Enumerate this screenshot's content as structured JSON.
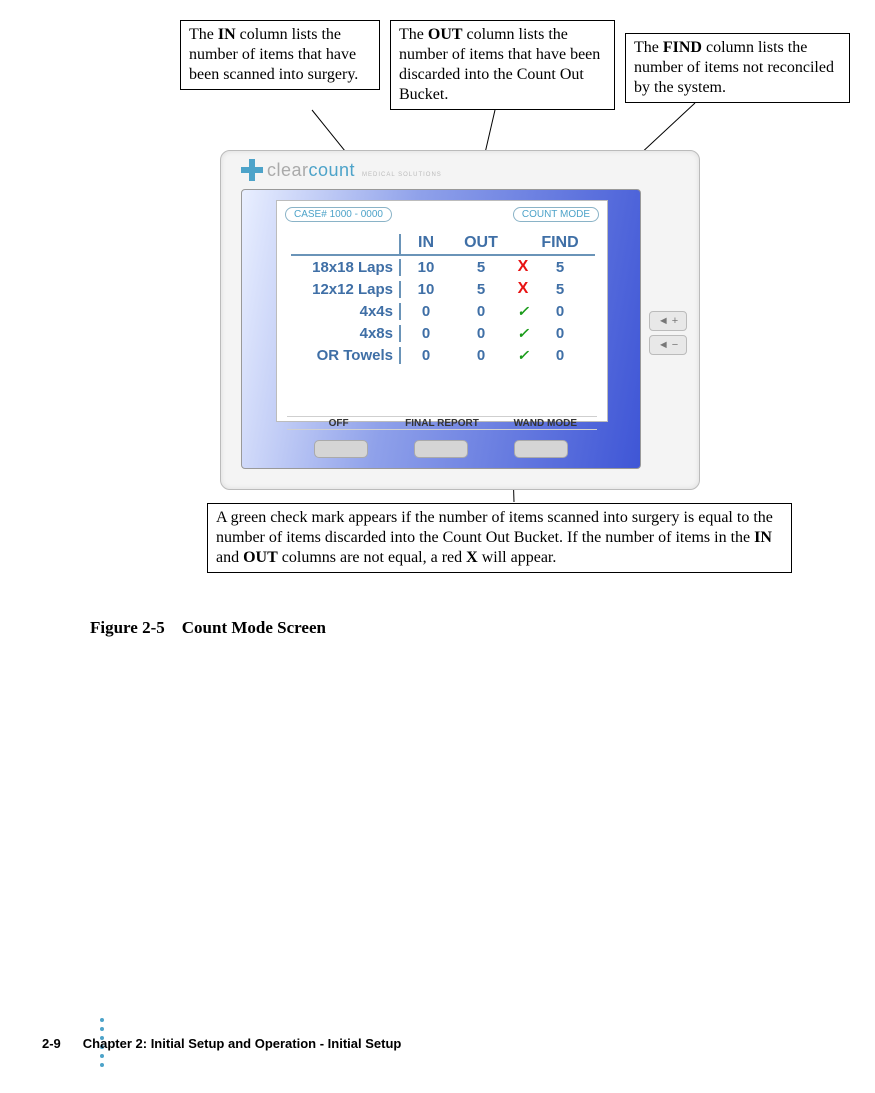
{
  "callouts": {
    "in": "The <b>IN</b> column lists the number of items that have been scanned into surgery.",
    "out": "The <b>OUT</b> column lists the number of items that have been discarded into the Count Out Bucket.",
    "find": "The <b>FIND</b> column lists the number of items not reconciled by the system.",
    "check": "A green check mark appears if the number of items scanned into surgery is equal to the number of items discarded into the Count Out Bucket. If the number of items in the <b>IN</b> and <b>OUT</b> columns are not equal, a red <b>X</b> will appear."
  },
  "logo": {
    "clear": "clear",
    "count": "count",
    "sub": "MEDICAL SOLUTIONS"
  },
  "caseBadge": "CASE# 1000 - 0000",
  "modeBadge": "COUNT MODE",
  "columns": {
    "in": "IN",
    "out": "OUT",
    "find": "FIND"
  },
  "rows": [
    {
      "label": "18x18 Laps",
      "in": "10",
      "out": "5",
      "status": "X",
      "statusType": "x",
      "find": "5"
    },
    {
      "label": "12x12 Laps",
      "in": "10",
      "out": "5",
      "status": "X",
      "statusType": "x",
      "find": "5"
    },
    {
      "label": "4x4s",
      "in": "0",
      "out": "0",
      "status": "✓",
      "statusType": "check",
      "find": "0"
    },
    {
      "label": "4x8s",
      "in": "0",
      "out": "0",
      "status": "✓",
      "statusType": "check",
      "find": "0"
    },
    {
      "label": "OR Towels",
      "in": "0",
      "out": "0",
      "status": "✓",
      "statusType": "check",
      "find": "0"
    }
  ],
  "tabs": {
    "off": "OFF",
    "final": "FINAL REPORT",
    "wand": "WAND MODE"
  },
  "sideBtns": {
    "up": "◄ +",
    "down": "◄ −"
  },
  "caption": {
    "label": "Figure 2-5",
    "title": "Count Mode Screen"
  },
  "footer": {
    "page": "2-9",
    "chapter": "Chapter 2: Initial Setup and Operation",
    "sep": " - ",
    "section": "Initial Setup"
  },
  "colors": {
    "accent": "#4da3c9",
    "tableBlue": "#3f6fa6",
    "redX": "#e81313",
    "greenCheck": "#1a9b1a"
  }
}
